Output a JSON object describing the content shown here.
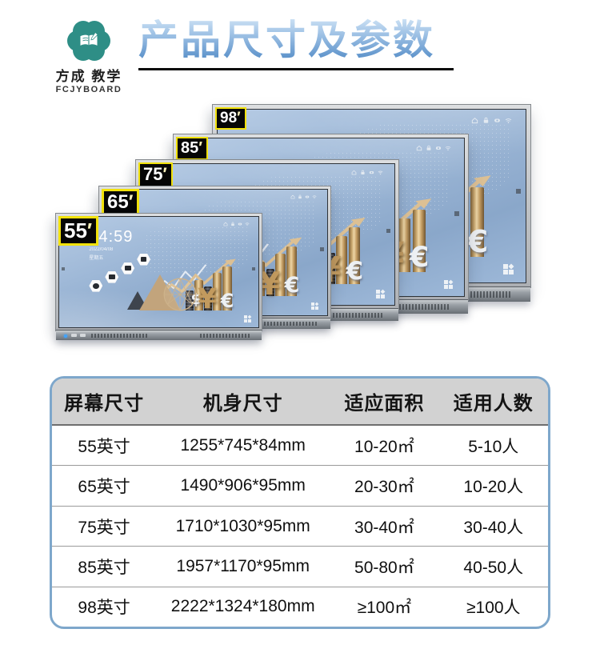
{
  "brand": {
    "name_cn": "方成 教学",
    "name_en": "FCJYBOARD",
    "logo_color": "#2e8e86"
  },
  "header": {
    "title": "产品尺寸及参数"
  },
  "displays": [
    {
      "size": "98",
      "prime": "′"
    },
    {
      "size": "85",
      "prime": "′"
    },
    {
      "size": "75",
      "prime": "′"
    },
    {
      "size": "65",
      "prime": "′"
    },
    {
      "size": "55",
      "prime": "′",
      "clock": {
        "time": "14:59",
        "date": "2022/04/08",
        "weekday": "星期五"
      }
    }
  ],
  "screen_art": {
    "symbols": {
      "dollar": "$",
      "yen": "¥",
      "euro": "€"
    }
  },
  "colors": {
    "badge_yellow": "#f2e20c",
    "title_blue": "#4d87c4",
    "logo_teal": "#2e8e86",
    "screen_blue": "#9eb8d7",
    "gold": "#c9a76e",
    "table_border_blue": "#7ea7cb"
  },
  "table": {
    "columns": [
      "屏幕尺寸",
      "机身尺寸",
      "适应面积",
      "适用人数"
    ],
    "rows": [
      [
        "55英寸",
        "1255*745*84mm",
        "10-20㎡",
        "5-10人"
      ],
      [
        "65英寸",
        "1490*906*95mm",
        "20-30㎡",
        "10-20人"
      ],
      [
        "75英寸",
        "1710*1030*95mm",
        "30-40㎡",
        "30-40人"
      ],
      [
        "85英寸",
        "1957*1170*95mm",
        "50-80㎡",
        "40-50人"
      ],
      [
        "98英寸",
        "2222*1324*180mm",
        "≥100㎡",
        "≥100人"
      ]
    ]
  }
}
